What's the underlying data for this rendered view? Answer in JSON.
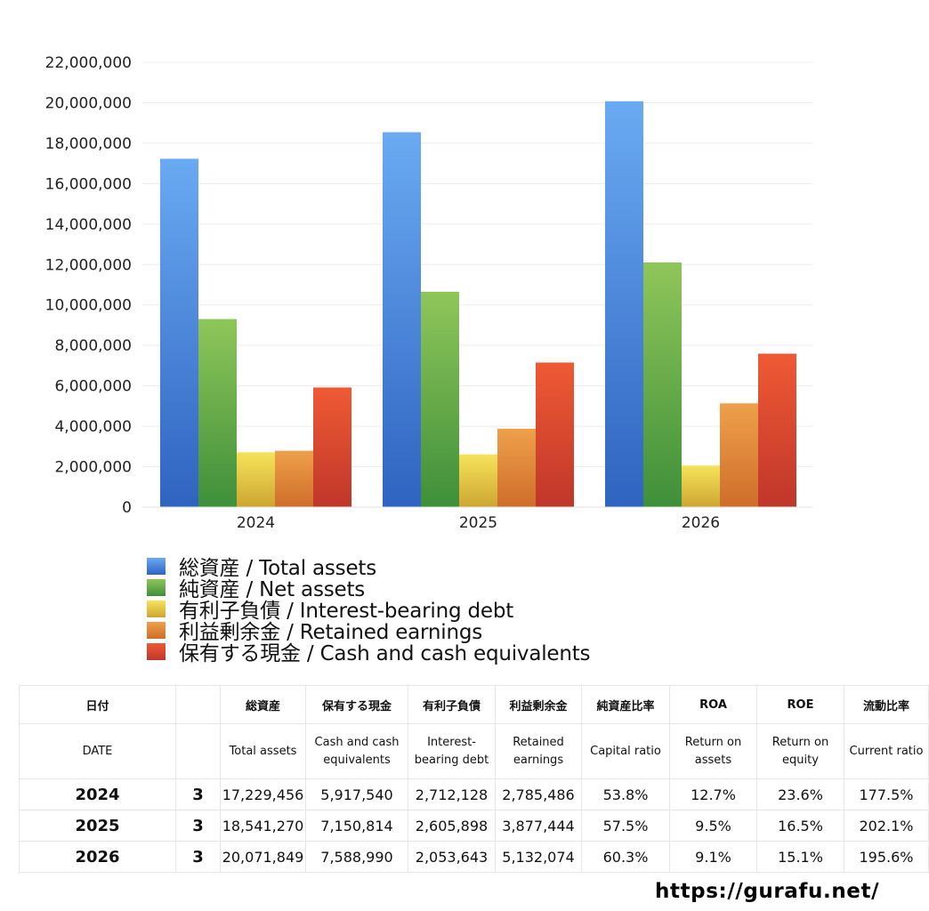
{
  "chart_data": {
    "type": "bar",
    "categories": [
      "2024",
      "2025",
      "2026"
    ],
    "ylim": [
      0,
      22000000
    ],
    "yticks": [
      0,
      2000000,
      4000000,
      6000000,
      8000000,
      10000000,
      12000000,
      14000000,
      16000000,
      18000000,
      20000000,
      22000000
    ],
    "ytick_labels": [
      "0",
      "2,000,000",
      "4,000,000",
      "6,000,000",
      "8,000,000",
      "10,000,000",
      "12,000,000",
      "14,000,000",
      "16,000,000",
      "18,000,000",
      "20,000,000",
      "22,000,000"
    ],
    "grid": true,
    "legend_position": "bottom",
    "series": [
      {
        "name": "総資産 / Total assets",
        "values": [
          17229456,
          18541270,
          20071849
        ],
        "color_top": "#6aaaf2",
        "color_bottom": "#2f63c0"
      },
      {
        "name": "純資産 / Net assets",
        "values": [
          9300000,
          10650000,
          12100000
        ],
        "color_top": "#8fc65a",
        "color_bottom": "#3f8f3a"
      },
      {
        "name": "有利子負債 / Interest-bearing debt",
        "values": [
          2712128,
          2605898,
          2053643
        ],
        "color_top": "#f6e35a",
        "color_bottom": "#cda632"
      },
      {
        "name": "利益剰余金 / Retained earnings",
        "values": [
          2785486,
          3877444,
          5132074
        ],
        "color_top": "#eea04a",
        "color_bottom": "#cf6d2b"
      },
      {
        "name": "保有する現金 /  Cash and cash equivalents",
        "values": [
          5917540,
          7150814,
          7588990
        ],
        "color_top": "#ef5a34",
        "color_bottom": "#c0362a"
      }
    ]
  },
  "table": {
    "headers_ja": [
      "日付",
      "",
      "総資産",
      "保有する現金",
      "有利子負債",
      "利益剰余金",
      "純資産比率",
      "ROA",
      "ROE",
      "流動比率"
    ],
    "headers_en": [
      "DATE",
      "",
      "Total assets",
      "Cash and cash equivalents",
      "Interest-bearing debt",
      "Retained earnings",
      "Capital ratio",
      "Return on assets",
      "Return on equity",
      "Current ratio"
    ],
    "rows": [
      [
        "2024",
        "3",
        "17,229,456",
        "5,917,540",
        "2,712,128",
        "2,785,486",
        "53.8%",
        "12.7%",
        "23.6%",
        "177.5%"
      ],
      [
        "2025",
        "3",
        "18,541,270",
        "7,150,814",
        "2,605,898",
        "3,877,444",
        "57.5%",
        "9.5%",
        "16.5%",
        "202.1%"
      ],
      [
        "2026",
        "3",
        "20,071,849",
        "7,588,990",
        "2,053,643",
        "5,132,074",
        "60.3%",
        "9.1%",
        "15.1%",
        "195.6%"
      ]
    ]
  },
  "footer": {
    "url": "https://gurafu.net/"
  }
}
